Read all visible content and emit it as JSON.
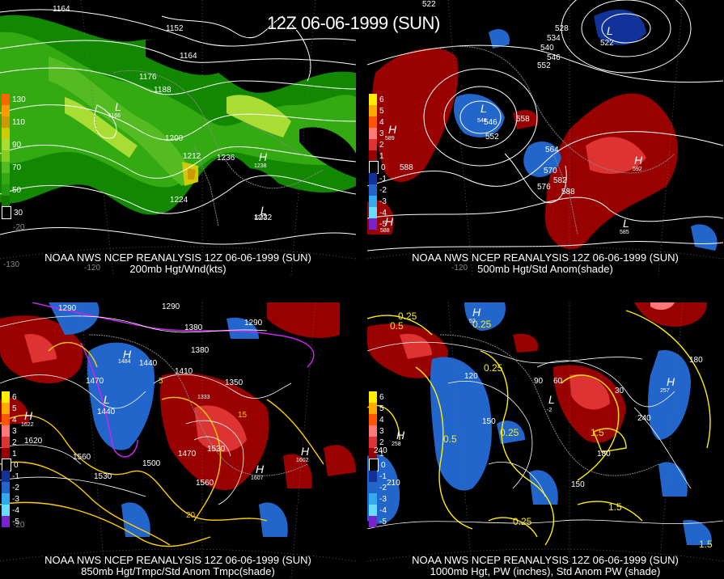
{
  "header": {
    "title": "12Z 06-06-1999 (SUN)"
  },
  "panels": [
    {
      "id": "p1",
      "line1": "NOAA NWS NCEP REANALYSIS 12Z 06-06-1999 (SUN)",
      "line2": "200mb Hgt/Wnd(kts)",
      "legend": [
        {
          "label": "130",
          "color": "#ff6600"
        },
        {
          "label": "",
          "color": "#ff9900"
        },
        {
          "label": "110",
          "color": "#cc9900"
        },
        {
          "label": "",
          "color": "#cccc00"
        },
        {
          "label": "90",
          "color": "#aadd33"
        },
        {
          "label": "",
          "color": "#88cc22"
        },
        {
          "label": "70",
          "color": "#55bb22"
        },
        {
          "label": "",
          "color": "#33aa11"
        },
        {
          "label": "50",
          "color": "#229911"
        },
        {
          "label": "",
          "color": "#117700"
        },
        {
          "label": "30",
          "color": "#000000"
        }
      ],
      "contours": [
        "1164",
        "1152",
        "1164",
        "1176",
        "1188",
        "1200",
        "1212",
        "1236",
        "1224",
        "1232"
      ],
      "centers": [
        {
          "type": "L",
          "value": "1166"
        },
        {
          "type": "H",
          "value": "1238"
        },
        {
          "type": "L",
          "value": "1232"
        }
      ],
      "lons": [
        "-130",
        "-120",
        "-20"
      ]
    },
    {
      "id": "p2",
      "line1": "NOAA NWS NCEP REANALYSIS 12Z 06-06-1999 (SUN)",
      "line2": "500mb Hgt/Std Anom(shade)",
      "legend": [
        {
          "label": "6",
          "color": "#ffee00"
        },
        {
          "label": "5",
          "color": "#ffaa00"
        },
        {
          "label": "4",
          "color": "#ff5500"
        },
        {
          "label": "3",
          "color": "#ff7777"
        },
        {
          "label": "2",
          "color": "#dd3333"
        },
        {
          "label": "1",
          "color": "#990000"
        },
        {
          "label": "0",
          "color": "#000000"
        },
        {
          "label": "-1",
          "color": "#113399"
        },
        {
          "label": "-2",
          "color": "#2266cc"
        },
        {
          "label": "-3",
          "color": "#33aaee"
        },
        {
          "label": "-4",
          "color": "#66ddff"
        },
        {
          "label": "-5",
          "color": "#7722cc"
        }
      ],
      "contours": [
        "522",
        "528",
        "534",
        "540",
        "546",
        "552",
        "522",
        "546",
        "552",
        "558",
        "588",
        "564",
        "570",
        "582",
        "576",
        "588"
      ],
      "centers": [
        {
          "type": "L",
          "value": "522"
        },
        {
          "type": "L",
          "value": "546"
        },
        {
          "type": "H",
          "value": "589"
        },
        {
          "type": "H",
          "value": "592"
        },
        {
          "type": "H",
          "value": "588"
        },
        {
          "type": "L",
          "value": "585"
        }
      ],
      "lons": [
        "-120"
      ]
    },
    {
      "id": "p3",
      "line1": "NOAA NWS NCEP REANALYSIS 12Z 06-06-1999 (SUN)",
      "line2": "850mb Hgt/Tmpc/Std Anom Tmpc(shade)",
      "legend": [
        {
          "label": "6",
          "color": "#ffee00"
        },
        {
          "label": "5",
          "color": "#ffaa00"
        },
        {
          "label": "4",
          "color": "#ff5500"
        },
        {
          "label": "3",
          "color": "#ff7777"
        },
        {
          "label": "2",
          "color": "#dd3333"
        },
        {
          "label": "1",
          "color": "#990000"
        },
        {
          "label": "0",
          "color": "#000000"
        },
        {
          "label": "-1",
          "color": "#113399"
        },
        {
          "label": "-2",
          "color": "#2266cc"
        },
        {
          "label": "-3",
          "color": "#33aaee"
        },
        {
          "label": "-4",
          "color": "#66ddff"
        },
        {
          "label": "-5",
          "color": "#7722cc"
        }
      ],
      "contours": [
        "1290",
        "1380",
        "1290",
        "1290",
        "1470",
        "1440",
        "1440",
        "1410",
        "1350",
        "1380",
        "1620",
        "1560",
        "1500",
        "1530",
        "1560",
        "1470",
        "1530",
        "15",
        "20",
        "5"
      ],
      "centers": [
        {
          "type": "H",
          "value": "1484"
        },
        {
          "type": "L",
          "value": "1440"
        },
        {
          "type": "H",
          "value": "1622"
        },
        {
          "type": "L",
          "value": "1333"
        },
        {
          "type": "H",
          "value": "1602"
        },
        {
          "type": "H",
          "value": "1607"
        }
      ],
      "lons": [
        "-20"
      ]
    },
    {
      "id": "p4",
      "line1": "NOAA NWS NCEP REANALYSIS 12Z 06-06-1999 (SUN)",
      "line2": "1000mb Hgt, PW (inches), Std Anom PW (shade)",
      "legend": [
        {
          "label": "6",
          "color": "#ffee00"
        },
        {
          "label": "5",
          "color": "#ffaa00"
        },
        {
          "label": "4",
          "color": "#ff5500"
        },
        {
          "label": "3",
          "color": "#ff7777"
        },
        {
          "label": "2",
          "color": "#dd3333"
        },
        {
          "label": "1",
          "color": "#990000"
        },
        {
          "label": "0",
          "color": "#000000"
        },
        {
          "label": "-1",
          "color": "#113399"
        },
        {
          "label": "-2",
          "color": "#2266cc"
        },
        {
          "label": "-3",
          "color": "#33aaee"
        },
        {
          "label": "-4",
          "color": "#66ddff"
        },
        {
          "label": "-5",
          "color": "#7722cc"
        }
      ],
      "contours": [
        "0.25",
        "0.5",
        "0.25",
        "0.25",
        "0.5",
        "0.25",
        "1.5",
        "1.5",
        "1.5",
        "0.25",
        "120",
        "90",
        "60",
        "30",
        "180",
        "240",
        "150",
        "180",
        "150",
        "210",
        "240"
      ],
      "centers": [
        {
          "type": "H",
          "value": "258"
        },
        {
          "type": "L",
          "value": "-2"
        },
        {
          "type": "H",
          "value": "257"
        },
        {
          "type": "H",
          "value": "52"
        }
      ],
      "lons": []
    }
  ]
}
